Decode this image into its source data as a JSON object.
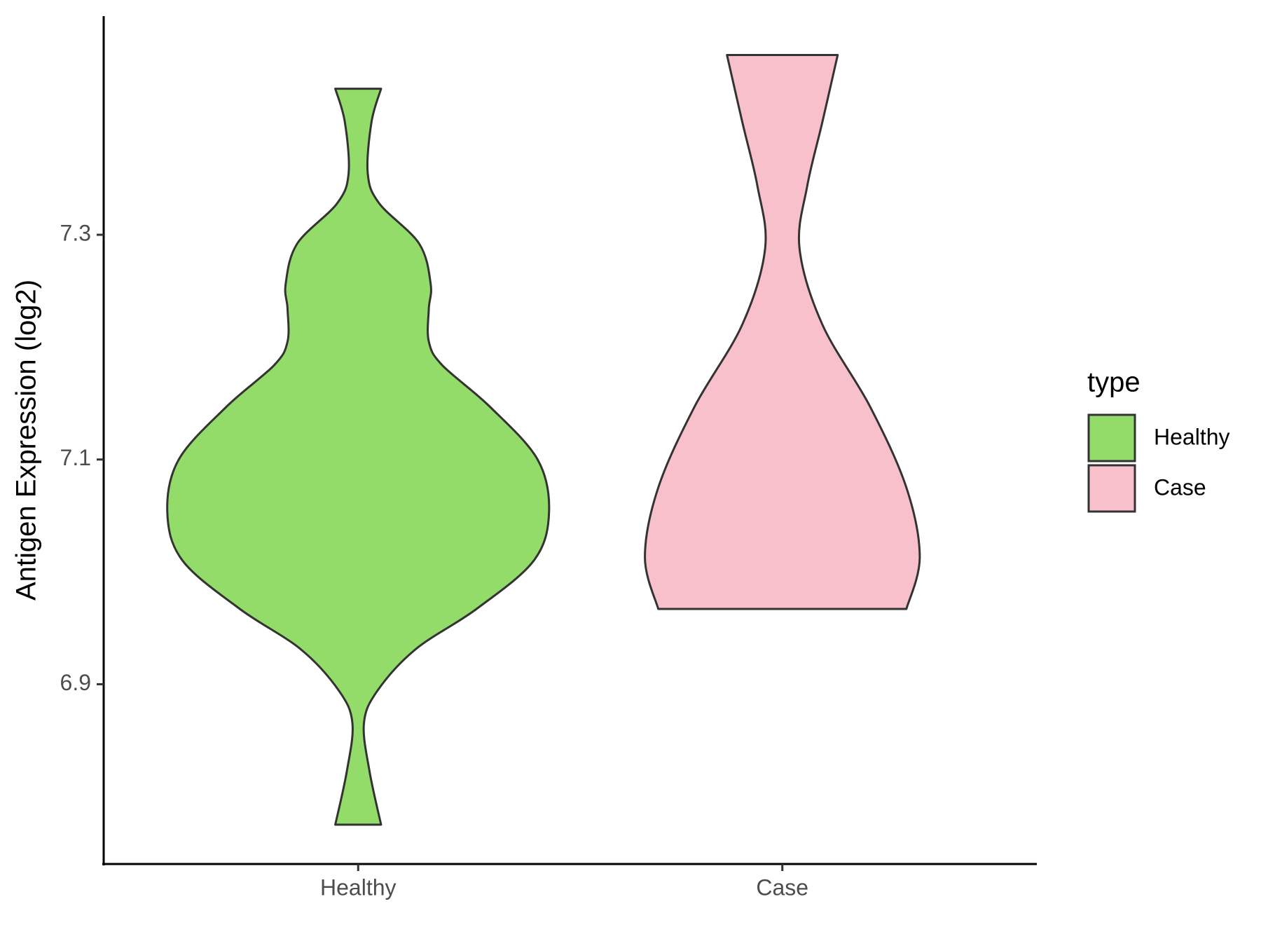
{
  "chart_data": {
    "type": "violin",
    "y_label": "Antigen Expression (log2)",
    "legend_title": "type",
    "categories": [
      "Healthy",
      "Case"
    ],
    "ylim": [
      6.74,
      7.4946
    ],
    "yticks": [
      6.9,
      7.1,
      7.3
    ],
    "series": [
      {
        "name": "Healthy",
        "color": "#93dc6a",
        "values": [
          7.43,
          7.4005,
          7.355,
          7.328,
          7.292,
          7.256,
          7.234,
          7.205,
          7.184,
          7.147,
          7.1,
          7.053,
          7.01,
          6.967,
          6.931,
          6.894,
          6.865,
          6.822,
          6.775
        ],
        "widths": [
          0.12,
          0.07,
          0.05,
          0.11,
          0.32,
          0.38,
          0.37,
          0.37,
          0.44,
          0.69,
          0.94,
          1.0,
          0.92,
          0.62,
          0.3,
          0.1,
          0.03,
          0.06,
          0.12
        ]
      },
      {
        "name": "Case",
        "color": "#f7c0cb",
        "values": [
          7.46,
          7.4005,
          7.343,
          7.288,
          7.22,
          7.147,
          7.075,
          7.013,
          6.967
        ],
        "widths": [
          0.29,
          0.21,
          0.13,
          0.09,
          0.21,
          0.46,
          0.65,
          0.72,
          0.65
        ]
      }
    ]
  }
}
